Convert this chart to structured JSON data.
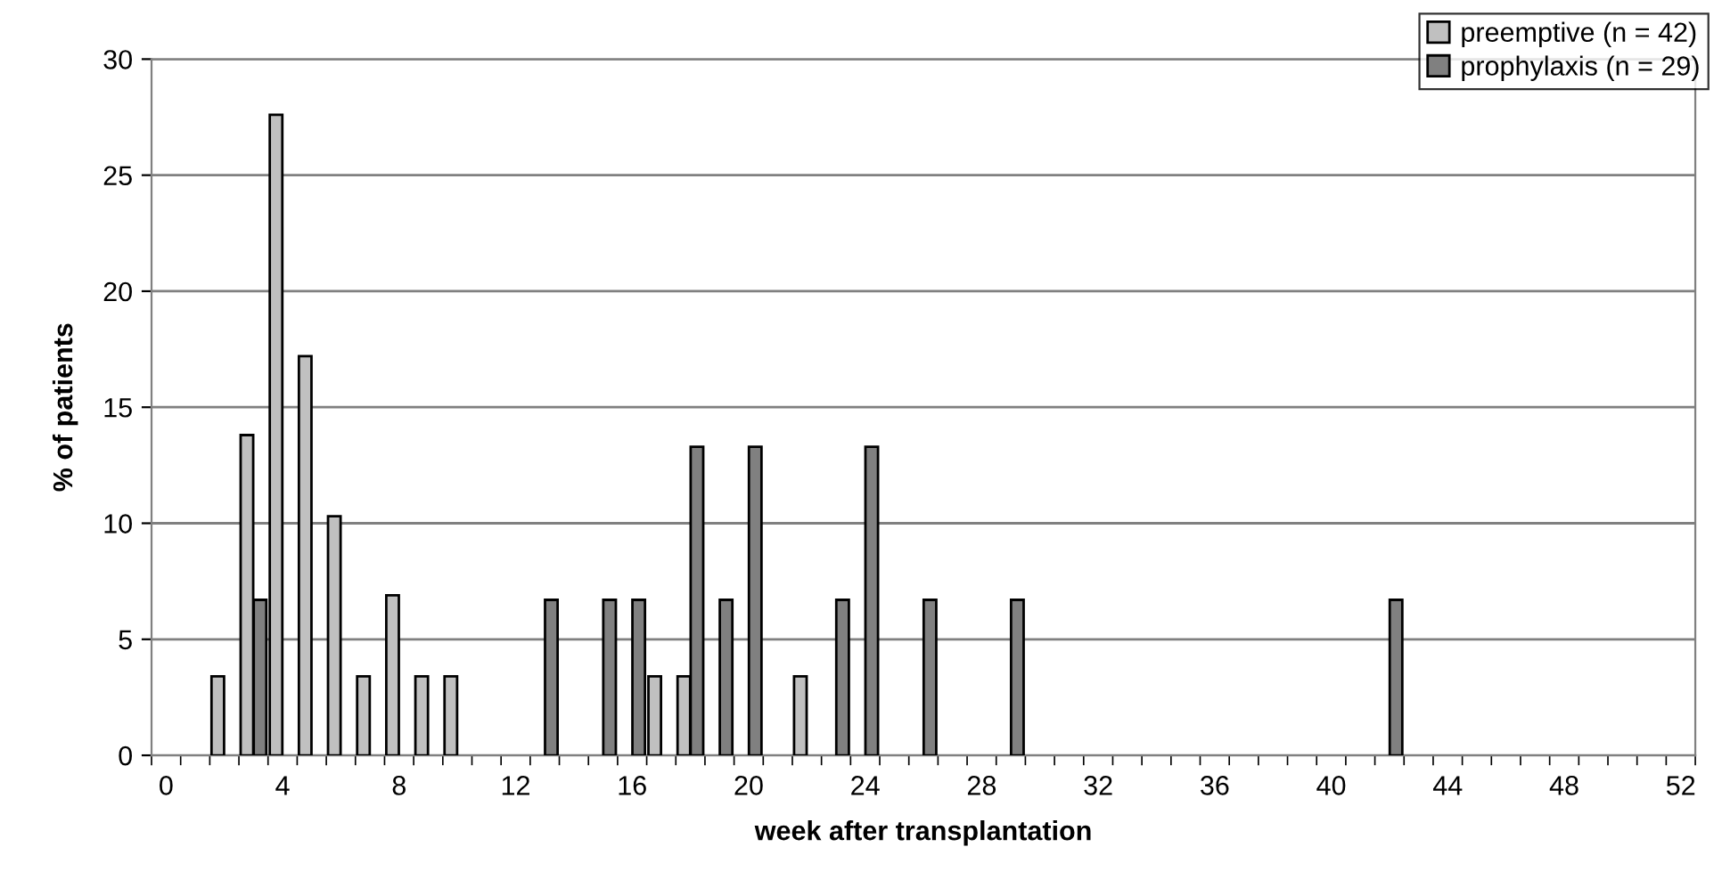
{
  "chart_data": {
    "type": "bar",
    "xlabel": "week after transplantation",
    "ylabel": "% of patients",
    "categories": [
      "0",
      null,
      null,
      null,
      "4",
      null,
      null,
      null,
      "8",
      null,
      null,
      null,
      "12",
      null,
      null,
      null,
      "16",
      null,
      null,
      null,
      "20",
      null,
      null,
      null,
      "24",
      null,
      null,
      null,
      "28",
      null,
      null,
      null,
      "32",
      null,
      null,
      null,
      "36",
      null,
      null,
      null,
      "40",
      null,
      null,
      null,
      "44",
      null,
      null,
      null,
      "48",
      null,
      null,
      null,
      "52"
    ],
    "series": [
      {
        "name": "preemptive (n = 42)",
        "color": "#c0c0c0",
        "values": [
          null,
          null,
          3.4,
          13.8,
          27.6,
          17.2,
          10.3,
          3.4,
          6.9,
          3.4,
          3.4,
          null,
          null,
          null,
          null,
          null,
          null,
          3.4,
          3.4,
          null,
          null,
          null,
          3.4,
          null,
          null,
          null,
          null,
          null,
          null,
          null,
          null,
          null,
          null,
          null,
          null,
          null,
          null,
          null,
          null,
          null,
          null,
          null,
          null,
          null,
          null,
          null,
          null,
          null,
          null,
          null,
          null,
          null,
          null
        ]
      },
      {
        "name": "prophylaxis (n = 29)",
        "color": "#808080",
        "values": [
          null,
          null,
          null,
          6.7,
          null,
          null,
          null,
          null,
          null,
          null,
          null,
          null,
          null,
          6.7,
          null,
          6.7,
          6.7,
          null,
          13.3,
          6.7,
          13.3,
          null,
          null,
          6.7,
          13.3,
          null,
          6.7,
          null,
          null,
          6.7,
          null,
          null,
          null,
          null,
          null,
          null,
          null,
          null,
          null,
          null,
          null,
          null,
          6.7,
          null,
          null,
          null,
          null,
          null,
          null,
          null,
          null,
          null,
          null
        ]
      }
    ],
    "ylim": [
      0,
      30
    ],
    "yticks": [
      0,
      5,
      10,
      15,
      20,
      25,
      30
    ],
    "grid": "y",
    "legend": "top right"
  }
}
